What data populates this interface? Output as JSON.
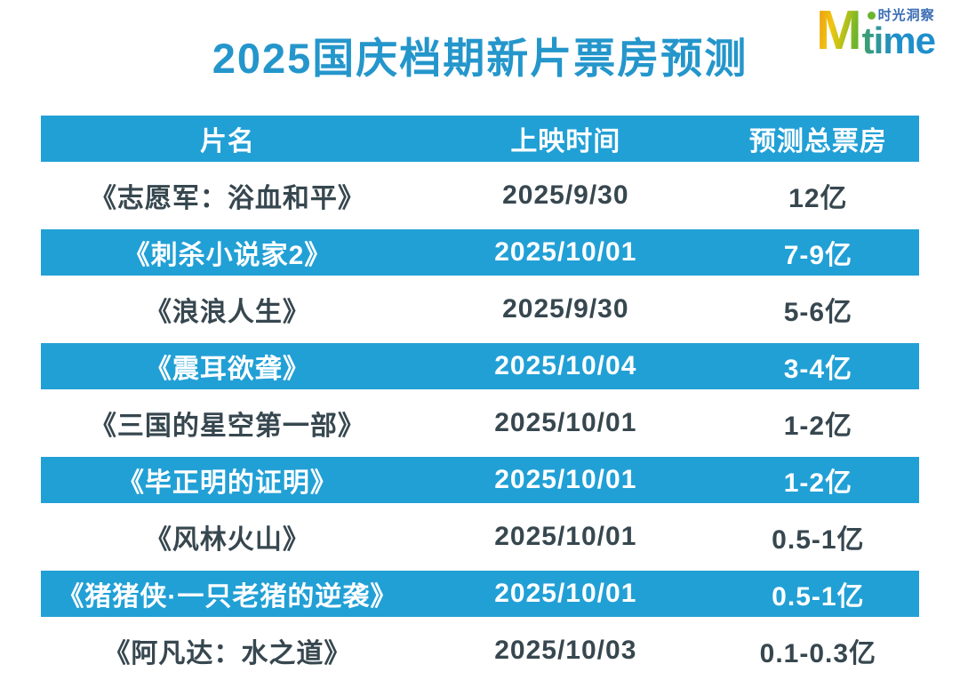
{
  "header": {
    "title": "2025国庆档期新片票房预测",
    "logo": {
      "m": "M",
      "time": "time",
      "tagline": "时光洞察"
    }
  },
  "chart_data": {
    "type": "table",
    "title": "2025国庆档期新片票房预测",
    "columns": [
      "片名",
      "上映时间",
      "预测总票房"
    ],
    "rows": [
      [
        "《志愿军：浴血和平》",
        "2025/9/30",
        "12亿"
      ],
      [
        "《刺杀小说家2》",
        "2025/10/01",
        "7-9亿"
      ],
      [
        "《浪浪人生》",
        "2025/9/30",
        "5-6亿"
      ],
      [
        "《震耳欲聋》",
        "2025/10/04",
        "3-4亿"
      ],
      [
        "《三国的星空第一部》",
        "2025/10/01",
        "1-2亿"
      ],
      [
        "《毕正明的证明》",
        "2025/10/01",
        "1-2亿"
      ],
      [
        "《风林火山》",
        "2025/10/01",
        "0.5-1亿"
      ],
      [
        "《猪猪侠·一只老猪的逆袭》",
        "2025/10/01",
        "0.5-1亿"
      ],
      [
        "《阿凡达：水之道》",
        "2025/10/03",
        "0.1-0.3亿"
      ]
    ],
    "highlighted_rows": [
      1,
      3,
      5,
      7
    ],
    "layout": {
      "header_background": "#21a0d6",
      "highlight_background": "#21a0d6",
      "plain_text_color": "#37474f",
      "highlight_text_color": "#ffffff",
      "title_color": "#2496cb"
    }
  }
}
